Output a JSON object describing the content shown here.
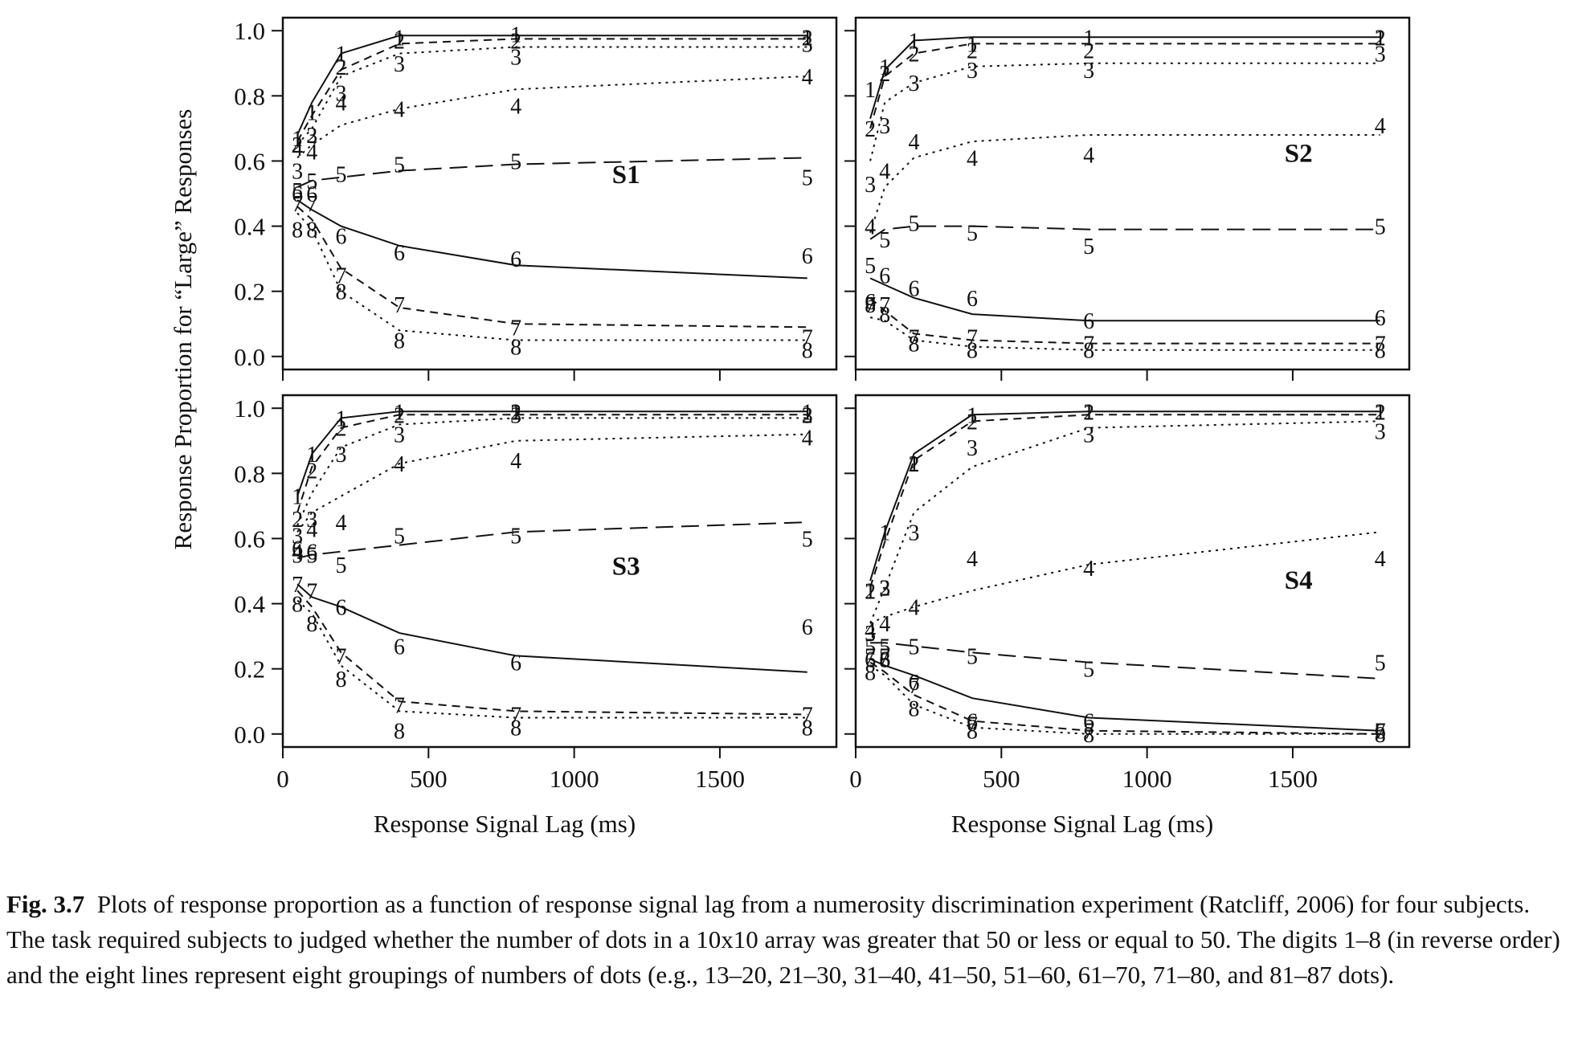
{
  "figure": {
    "ylabel": "Response Proportion for “Large” Responses",
    "xlabel": "Response Signal Lag (ms)",
    "x_ticks": [
      0,
      500,
      1000,
      1500
    ],
    "y_ticks": [
      "0.0",
      "0.2",
      "0.4",
      "0.6",
      "0.8",
      "1.0"
    ]
  },
  "caption": {
    "label": "Fig. 3.7",
    "text": "Plots of response proportion as a function of response signal lag from a numerosity discrimination experiment (Ratcliff, 2006) for four subjects. The task required subjects to judged whether the number of dots in a 10x10 array was greater that 50 or less or equal to 50. The digits 1–8 (in reverse order) and the eight lines represent eight groupings of numbers of dots (e.g., 13–20, 21–30, 31–40, 41–50, 51–60, 61–70, 71–80, and 81–87 dots)."
  },
  "chart_data": [
    {
      "type": "line",
      "panel": "S1",
      "xlim": [
        0,
        1900
      ],
      "ylim": [
        -0.04,
        1.04
      ],
      "x": [
        50,
        100,
        200,
        400,
        800,
        1800
      ],
      "series": [
        {
          "name": "1",
          "style": "solid",
          "data": [
            0.67,
            0.75,
            0.93,
            0.98,
            0.99,
            0.98
          ],
          "model": [
            0.68,
            0.78,
            0.93,
            0.985,
            0.985,
            0.985
          ]
        },
        {
          "name": "2",
          "style": "dashed",
          "data": [
            0.65,
            0.68,
            0.89,
            0.97,
            0.97,
            0.98
          ],
          "model": [
            0.66,
            0.74,
            0.88,
            0.96,
            0.975,
            0.975
          ]
        },
        {
          "name": "3",
          "style": "dotted",
          "data": [
            0.57,
            0.68,
            0.81,
            0.9,
            0.92,
            0.96
          ],
          "model": [
            0.65,
            0.7,
            0.86,
            0.93,
            0.95,
            0.95
          ]
        },
        {
          "name": "4",
          "style": "dotted",
          "data": [
            0.64,
            0.63,
            0.78,
            0.76,
            0.77,
            0.86
          ],
          "model": [
            0.61,
            0.65,
            0.71,
            0.76,
            0.82,
            0.86
          ]
        },
        {
          "name": "5",
          "style": "longdash",
          "data": [
            0.51,
            0.54,
            0.56,
            0.59,
            0.6,
            0.55
          ],
          "model": [
            0.52,
            0.54,
            0.55,
            0.57,
            0.59,
            0.61
          ]
        },
        {
          "name": "6",
          "style": "solid",
          "data": [
            0.5,
            0.5,
            0.37,
            0.32,
            0.3,
            0.31
          ],
          "model": [
            0.48,
            0.45,
            0.4,
            0.34,
            0.28,
            0.24
          ]
        },
        {
          "name": "7",
          "style": "dashed",
          "data": [
            0.47,
            0.47,
            0.25,
            0.16,
            0.09,
            0.06
          ],
          "model": [
            0.46,
            0.42,
            0.27,
            0.15,
            0.1,
            0.09
          ]
        },
        {
          "name": "8",
          "style": "dotted",
          "data": [
            0.39,
            0.39,
            0.2,
            0.05,
            0.03,
            0.02
          ],
          "model": [
            0.44,
            0.39,
            0.2,
            0.08,
            0.05,
            0.05
          ]
        }
      ]
    },
    {
      "type": "line",
      "panel": "S2",
      "xlim": [
        0,
        1900
      ],
      "ylim": [
        -0.04,
        1.04
      ],
      "x": [
        50,
        100,
        200,
        400,
        800,
        1800
      ],
      "series": [
        {
          "name": "1",
          "style": "solid",
          "data": [
            0.82,
            0.89,
            0.97,
            0.96,
            0.98,
            0.98
          ],
          "model": [
            0.73,
            0.88,
            0.97,
            0.98,
            0.98,
            0.98
          ]
        },
        {
          "name": "2",
          "style": "dashed",
          "data": [
            0.7,
            0.87,
            0.93,
            0.94,
            0.94,
            0.98
          ],
          "model": [
            0.7,
            0.86,
            0.93,
            0.96,
            0.96,
            0.96
          ]
        },
        {
          "name": "3",
          "style": "dotted",
          "data": [
            0.53,
            0.71,
            0.84,
            0.88,
            0.88,
            0.93
          ],
          "model": [
            0.6,
            0.78,
            0.84,
            0.89,
            0.9,
            0.9
          ]
        },
        {
          "name": "4",
          "style": "dotted",
          "data": [
            0.4,
            0.57,
            0.66,
            0.61,
            0.62,
            0.71
          ],
          "model": [
            0.38,
            0.52,
            0.61,
            0.66,
            0.68,
            0.68
          ]
        },
        {
          "name": "5",
          "style": "longdash",
          "data": [
            0.28,
            0.36,
            0.41,
            0.38,
            0.34,
            0.4
          ],
          "model": [
            0.36,
            0.39,
            0.4,
            0.4,
            0.39,
            0.39
          ]
        },
        {
          "name": "6",
          "style": "solid",
          "data": [
            0.17,
            0.25,
            0.21,
            0.18,
            0.11,
            0.12
          ],
          "model": [
            0.24,
            0.22,
            0.18,
            0.13,
            0.11,
            0.11
          ]
        },
        {
          "name": "7",
          "style": "dashed",
          "data": [
            0.16,
            0.16,
            0.06,
            0.06,
            0.04,
            0.04
          ],
          "model": [
            0.18,
            0.14,
            0.07,
            0.05,
            0.04,
            0.04
          ]
        },
        {
          "name": "8",
          "style": "dotted",
          "data": [
            0.16,
            0.13,
            0.04,
            0.02,
            0.02,
            0.02
          ],
          "model": [
            0.12,
            0.11,
            0.05,
            0.03,
            0.02,
            0.02
          ]
        }
      ]
    },
    {
      "type": "line",
      "panel": "S3",
      "xlim": [
        0,
        1900
      ],
      "ylim": [
        -0.04,
        1.04
      ],
      "x": [
        50,
        100,
        200,
        400,
        800,
        1800
      ],
      "series": [
        {
          "name": "1",
          "style": "solid",
          "data": [
            0.73,
            0.86,
            0.97,
            0.99,
            0.99,
            0.99
          ],
          "model": [
            0.73,
            0.86,
            0.97,
            0.99,
            0.99,
            0.99
          ]
        },
        {
          "name": "2",
          "style": "dashed",
          "data": [
            0.66,
            0.81,
            0.94,
            0.98,
            0.99,
            0.98
          ],
          "model": [
            0.68,
            0.82,
            0.94,
            0.98,
            0.98,
            0.98
          ]
        },
        {
          "name": "3",
          "style": "dotted",
          "data": [
            0.61,
            0.66,
            0.86,
            0.92,
            0.98,
            0.98
          ],
          "model": [
            0.64,
            0.74,
            0.88,
            0.95,
            0.97,
            0.97
          ]
        },
        {
          "name": "4",
          "style": "dotted",
          "data": [
            0.56,
            0.63,
            0.65,
            0.83,
            0.84,
            0.91
          ],
          "model": [
            0.62,
            0.68,
            0.73,
            0.83,
            0.9,
            0.92
          ]
        },
        {
          "name": "5",
          "style": "longdash",
          "data": [
            0.55,
            0.55,
            0.52,
            0.61,
            0.61,
            0.6
          ],
          "model": [
            0.54,
            0.55,
            0.56,
            0.58,
            0.62,
            0.65
          ]
        },
        {
          "name": "6",
          "style": "solid",
          "data": [
            0.57,
            0.56,
            0.39,
            0.27,
            0.22,
            0.33
          ],
          "model": [
            0.46,
            0.42,
            0.39,
            0.31,
            0.24,
            0.19
          ]
        },
        {
          "name": "7",
          "style": "dashed",
          "data": [
            0.46,
            0.44,
            0.24,
            0.09,
            0.06,
            0.06
          ],
          "model": [
            0.44,
            0.39,
            0.25,
            0.1,
            0.07,
            0.06
          ]
        },
        {
          "name": "8",
          "style": "dotted",
          "data": [
            0.4,
            0.34,
            0.17,
            0.01,
            0.02,
            0.02
          ],
          "model": [
            0.41,
            0.37,
            0.21,
            0.07,
            0.05,
            0.05
          ]
        }
      ]
    },
    {
      "type": "line",
      "panel": "S4",
      "xlim": [
        0,
        1900
      ],
      "ylim": [
        -0.04,
        1.04
      ],
      "x": [
        50,
        100,
        200,
        400,
        800,
        1800
      ],
      "series": [
        {
          "name": "1",
          "style": "solid",
          "data": [
            0.44,
            0.62,
            0.83,
            0.98,
            0.99,
            0.99
          ],
          "model": [
            0.47,
            0.62,
            0.86,
            0.98,
            0.99,
            0.99
          ]
        },
        {
          "name": "2",
          "style": "dashed",
          "data": [
            0.44,
            0.45,
            0.83,
            0.96,
            0.99,
            0.99
          ],
          "model": [
            0.45,
            0.59,
            0.84,
            0.96,
            0.98,
            0.98
          ]
        },
        {
          "name": "3",
          "style": "dotted",
          "data": [
            0.31,
            0.45,
            0.62,
            0.88,
            0.92,
            0.93
          ],
          "model": [
            0.34,
            0.45,
            0.68,
            0.82,
            0.94,
            0.96
          ]
        },
        {
          "name": "4",
          "style": "dotted",
          "data": [
            0.32,
            0.34,
            0.39,
            0.54,
            0.51,
            0.54
          ],
          "model": [
            0.34,
            0.36,
            0.39,
            0.44,
            0.52,
            0.62
          ]
        },
        {
          "name": "5",
          "style": "longdash",
          "data": [
            0.27,
            0.27,
            0.27,
            0.24,
            0.2,
            0.22
          ],
          "model": [
            0.28,
            0.28,
            0.27,
            0.25,
            0.22,
            0.17
          ]
        },
        {
          "name": "6",
          "style": "solid",
          "data": [
            0.23,
            0.23,
            0.16,
            0.04,
            0.04,
            0.01
          ],
          "model": [
            0.23,
            0.21,
            0.18,
            0.11,
            0.05,
            0.01
          ]
        },
        {
          "name": "7",
          "style": "dashed",
          "data": [
            0.24,
            0.24,
            0.15,
            0.03,
            0.01,
            0.01
          ],
          "model": [
            0.22,
            0.19,
            0.12,
            0.04,
            0.01,
            0.0
          ]
        },
        {
          "name": "8",
          "style": "dotted",
          "data": [
            0.19,
            0.23,
            0.08,
            0.01,
            0.0,
            0.0
          ],
          "model": [
            0.21,
            0.18,
            0.09,
            0.02,
            0.0,
            0.0
          ]
        }
      ]
    }
  ]
}
